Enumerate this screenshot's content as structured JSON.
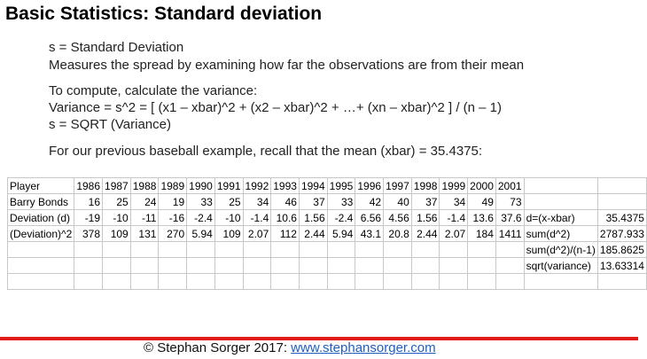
{
  "header": {
    "title": "Basic Statistics: Standard deviation"
  },
  "body": {
    "lines": [
      "s = Standard Deviation",
      "Measures the spread by examining how far the observations are from their mean",
      "To compute, calculate the variance:",
      "Variance = s^2 = [ (x1 – xbar)^2 + (x2 – xbar)^2 + …+ (xn – xbar)^2 ] / (n – 1)",
      "s = SQRT (Variance)",
      "For our previous baseball example, recall that the mean (xbar) = 35.4375:"
    ]
  },
  "table": {
    "header": [
      "Player",
      "1986",
      "1987",
      "1988",
      "1989",
      "1990",
      "1991",
      "1992",
      "1993",
      "1994",
      "1995",
      "1996",
      "1997",
      "1998",
      "1999",
      "2000",
      "2001"
    ],
    "rows": [
      [
        "Barry Bonds",
        "16",
        "25",
        "24",
        "19",
        "33",
        "25",
        "34",
        "46",
        "37",
        "33",
        "42",
        "40",
        "37",
        "34",
        "49",
        "73"
      ],
      [
        "Deviation (d)",
        "-19",
        "-10",
        "-11",
        "-16",
        "-2.4",
        "-10",
        "-1.4",
        "10.6",
        "1.56",
        "-2.4",
        "6.56",
        "4.56",
        "1.56",
        "-1.4",
        "13.6",
        "37.6",
        "d=(x-xbar)",
        "35.4375"
      ],
      [
        "(Deviation)^2",
        "378",
        "109",
        "131",
        "270",
        "5.94",
        "109",
        "2.07",
        "112",
        "2.44",
        "5.94",
        "43.1",
        "20.8",
        "2.44",
        "2.07",
        "184",
        "1411",
        "sum(d^2)",
        "2787.933"
      ]
    ],
    "summary": [
      [
        "sum(d^2)/(n-1)",
        "185.8625"
      ],
      [
        "sqrt(variance)",
        "13.63314"
      ]
    ]
  },
  "footer": {
    "text": "© Stephan Sorger 2017: ",
    "link": "www.stephansorger.com"
  }
}
